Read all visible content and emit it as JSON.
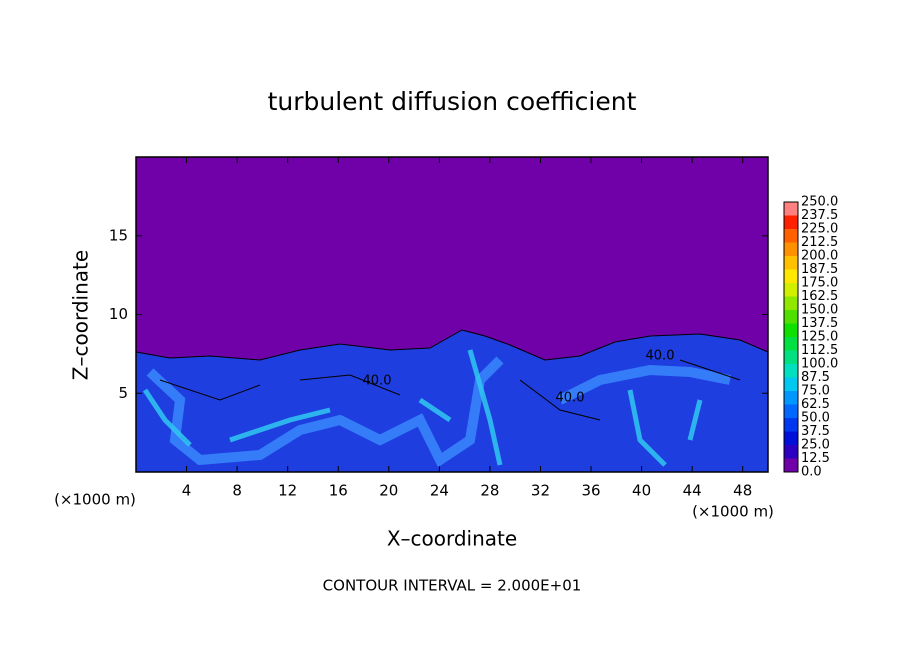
{
  "chart_data": {
    "type": "contour",
    "title": "turbulent diffusion coefficient",
    "x_label": "X–coordinate",
    "y_label": "Z–coordinate",
    "x_unit": "(×1000 m)",
    "y_unit": "(×1000 m)",
    "xlim": [
      0,
      50
    ],
    "xticks": [
      4,
      8,
      12,
      16,
      20,
      24,
      28,
      32,
      36,
      40,
      44,
      48
    ],
    "ylim": [
      0,
      20
    ],
    "yticks": [
      5,
      10,
      15
    ],
    "colorbar": {
      "levels": [
        {
          "value": 0,
          "label": "0.0"
        },
        {
          "value": 12.5,
          "label": "12.5"
        },
        {
          "value": 25,
          "label": "25.0"
        },
        {
          "value": 37.5,
          "label": "37.5"
        },
        {
          "value": 50,
          "label": "50.0"
        },
        {
          "value": 62.5,
          "label": "62.5"
        },
        {
          "value": 75,
          "label": "75.0"
        },
        {
          "value": 87.5,
          "label": "87.5"
        },
        {
          "value": 100,
          "label": "100.0"
        },
        {
          "value": 112.5,
          "label": "112.5"
        },
        {
          "value": 125,
          "label": "125.0"
        },
        {
          "value": 137.5,
          "label": "137.5"
        },
        {
          "value": 150,
          "label": "150.0"
        },
        {
          "value": 162.5,
          "label": "162.5"
        },
        {
          "value": 175,
          "label": "175.0"
        },
        {
          "value": 187.5,
          "label": "187.5"
        },
        {
          "value": 200,
          "label": "200.0"
        },
        {
          "value": 212.5,
          "label": "212.5"
        },
        {
          "value": 225,
          "label": "225.0"
        },
        {
          "value": 237.5,
          "label": "237.5"
        },
        {
          "value": 250,
          "label": "250.0"
        }
      ],
      "colors": [
        "#7000a8",
        "#2c00c0",
        "#0010d8",
        "#0038f0",
        "#0068ff",
        "#0098ff",
        "#00c8f0",
        "#00e0c0",
        "#00e080",
        "#00e040",
        "#10e000",
        "#50e000",
        "#90e800",
        "#d0f000",
        "#ffe800",
        "#ffc000",
        "#ff9000",
        "#ff6000",
        "#ff2000",
        "#ff8080"
      ]
    },
    "contour_labels": [
      "40.0",
      "40.0",
      "40.0"
    ],
    "footnote": "CONTOUR INTERVAL = 2.000E+01"
  }
}
